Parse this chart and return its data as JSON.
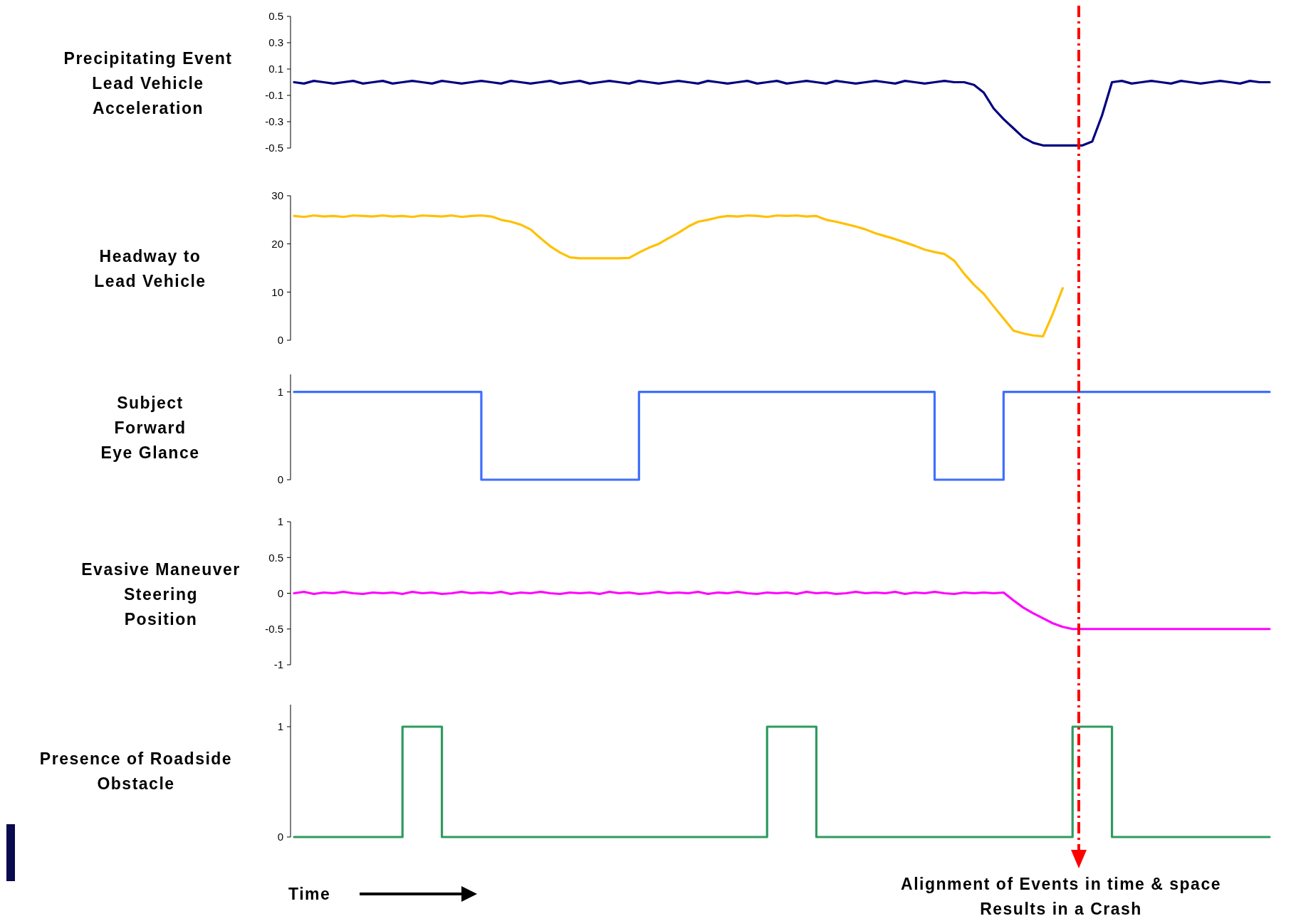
{
  "chart_data": [
    {
      "type": "line",
      "ylabel": "Precipitating Event\nLead Vehicle\nAcceleration",
      "ylim": [
        -0.5,
        0.5
      ],
      "yticks": [
        0.5,
        0.3,
        0.1,
        -0.1,
        -0.3,
        -0.5
      ],
      "categories": [
        null,
        null,
        null,
        null,
        null,
        null,
        null,
        null,
        null,
        null,
        null,
        null,
        null,
        null,
        null,
        null,
        null,
        null,
        null,
        null,
        null,
        null,
        null,
        null,
        null,
        null,
        null,
        null,
        null,
        null,
        null,
        null,
        null,
        null,
        null,
        null,
        null,
        null,
        null,
        null,
        null,
        null,
        null,
        null,
        null,
        null,
        null,
        null,
        null,
        null,
        null,
        null,
        null,
        null,
        null,
        null,
        null,
        null,
        null,
        null,
        null,
        null,
        null,
        null,
        null,
        null,
        null,
        null,
        null,
        null,
        null,
        null,
        null,
        null,
        null,
        null,
        null,
        null,
        null,
        null,
        null,
        null,
        null,
        null,
        null,
        null,
        null,
        null,
        null,
        null,
        null,
        null,
        null,
        null,
        null,
        null,
        null,
        null,
        null,
        null
      ],
      "series": [
        {
          "color": "#000080",
          "values": [
            0,
            -0.01,
            0.01,
            0,
            -0.01,
            0,
            0.01,
            -0.01,
            0,
            0.01,
            -0.01,
            0,
            0.01,
            0,
            -0.01,
            0.01,
            0,
            -0.01,
            0,
            0.01,
            0,
            -0.01,
            0.01,
            0,
            -0.01,
            0,
            0.01,
            -0.01,
            0,
            0.01,
            -0.01,
            0,
            0.01,
            0,
            -0.01,
            0.01,
            0,
            -0.01,
            0,
            0.01,
            0,
            -0.01,
            0.01,
            0,
            -0.01,
            0,
            0.01,
            -0.01,
            0,
            0.01,
            -0.01,
            0,
            0.01,
            0,
            -0.01,
            0.01,
            0,
            -0.01,
            0,
            0.01,
            0,
            -0.01,
            0.01,
            0,
            -0.01,
            0,
            0.01,
            0,
            0,
            -0.02,
            -0.08,
            -0.2,
            -0.28,
            -0.35,
            -0.42,
            -0.46,
            -0.48,
            -0.48,
            -0.48,
            -0.48,
            -0.48,
            -0.45,
            -0.25,
            0,
            0.01,
            -0.01,
            0,
            0.01,
            0,
            -0.01,
            0.01,
            0,
            -0.01,
            0,
            0.01,
            0,
            -0.01,
            0.01,
            0,
            0
          ]
        }
      ]
    },
    {
      "type": "line",
      "ylabel": "Headway to\nLead Vehicle",
      "ylim": [
        0,
        30
      ],
      "yticks": [
        0,
        10,
        20,
        30
      ],
      "categories": [
        null,
        null,
        null,
        null,
        null,
        null,
        null,
        null,
        null,
        null,
        null,
        null,
        null,
        null,
        null,
        null,
        null,
        null,
        null,
        null,
        null,
        null,
        null,
        null,
        null,
        null,
        null,
        null,
        null,
        null,
        null,
        null,
        null,
        null,
        null,
        null,
        null,
        null,
        null,
        null,
        null,
        null,
        null,
        null,
        null,
        null,
        null,
        null,
        null,
        null,
        null,
        null,
        null,
        null,
        null,
        null,
        null,
        null,
        null,
        null,
        null,
        null,
        null,
        null,
        null,
        null,
        null,
        null,
        null,
        null,
        null,
        null,
        null,
        null,
        null,
        null,
        null,
        null,
        null,
        null,
        null,
        null,
        null,
        null,
        null,
        null,
        null,
        null,
        null,
        null,
        null,
        null,
        null,
        null,
        null,
        null,
        null,
        null,
        null,
        null
      ],
      "series": [
        {
          "color": "#ffc000",
          "values": [
            25.8,
            25.6,
            25.9,
            25.7,
            25.8,
            25.6,
            25.9,
            25.8,
            25.7,
            25.9,
            25.7,
            25.8,
            25.6,
            25.9,
            25.8,
            25.7,
            25.9,
            25.6,
            25.8,
            25.9,
            25.7,
            25.0,
            24.6,
            24.0,
            23.0,
            21.2,
            19.5,
            18.2,
            17.2,
            17.0,
            17.0,
            17.0,
            17.0,
            17.0,
            17.1,
            18.2,
            19.2,
            20.0,
            21.2,
            22.3,
            23.6,
            24.6,
            25.0,
            25.5,
            25.8,
            25.7,
            25.9,
            25.8,
            25.6,
            25.9,
            25.8,
            25.9,
            25.7,
            25.8,
            25.0,
            24.6,
            24.1,
            23.6,
            23.0,
            22.2,
            21.6,
            21.0,
            20.3,
            19.6,
            18.8,
            18.3,
            17.9,
            16.5,
            13.8,
            11.5,
            9.6,
            7.0,
            4.5,
            2.0,
            1.4,
            1.0,
            0.8,
            5.5,
            10.8,
            null,
            null,
            null,
            null,
            null,
            null,
            null,
            null,
            null,
            null,
            null,
            null,
            null,
            null,
            null,
            null,
            null,
            null,
            null,
            null,
            null
          ]
        }
      ]
    },
    {
      "type": "step",
      "ylabel": "Subject\nForward\nEye Glance",
      "ylim": [
        0,
        1.2
      ],
      "yticks": [
        0,
        1
      ],
      "categories": [
        null,
        null,
        null,
        null,
        null,
        null,
        null,
        null,
        null,
        null,
        null,
        null,
        null,
        null,
        null,
        null,
        null,
        null,
        null,
        null,
        null,
        null,
        null,
        null,
        null,
        null,
        null,
        null,
        null,
        null,
        null,
        null,
        null,
        null,
        null,
        null,
        null,
        null,
        null,
        null,
        null,
        null,
        null,
        null,
        null,
        null,
        null,
        null,
        null,
        null,
        null,
        null,
        null,
        null,
        null,
        null,
        null,
        null,
        null,
        null,
        null,
        null,
        null,
        null,
        null,
        null,
        null,
        null,
        null,
        null,
        null,
        null,
        null,
        null,
        null,
        null,
        null,
        null,
        null,
        null,
        null,
        null,
        null,
        null,
        null,
        null,
        null,
        null,
        null,
        null,
        null,
        null,
        null,
        null,
        null,
        null,
        null,
        null,
        null,
        null
      ],
      "series": [
        {
          "color": "#3f6fff",
          "values": [
            1,
            1,
            1,
            1,
            1,
            1,
            1,
            1,
            1,
            1,
            1,
            1,
            1,
            1,
            1,
            1,
            1,
            1,
            1,
            0,
            0,
            0,
            0,
            0,
            0,
            0,
            0,
            0,
            0,
            0,
            0,
            0,
            0,
            0,
            0,
            1,
            1,
            1,
            1,
            1,
            1,
            1,
            1,
            1,
            1,
            1,
            1,
            1,
            1,
            1,
            1,
            1,
            1,
            1,
            1,
            1,
            1,
            1,
            1,
            1,
            1,
            1,
            1,
            1,
            1,
            0,
            0,
            0,
            0,
            0,
            0,
            0,
            1,
            1,
            1,
            1,
            1,
            1,
            1,
            1,
            1,
            1,
            1,
            1,
            1,
            1,
            1,
            1,
            1,
            1,
            1,
            1,
            1,
            1,
            1,
            1,
            1,
            1,
            1,
            1
          ]
        }
      ]
    },
    {
      "type": "line",
      "ylabel": "Evasive Maneuver\nSteering\nPosition",
      "ylim": [
        -1,
        1
      ],
      "yticks": [
        1,
        0.5,
        0,
        -0.5,
        -1
      ],
      "categories": [
        null,
        null,
        null,
        null,
        null,
        null,
        null,
        null,
        null,
        null,
        null,
        null,
        null,
        null,
        null,
        null,
        null,
        null,
        null,
        null,
        null,
        null,
        null,
        null,
        null,
        null,
        null,
        null,
        null,
        null,
        null,
        null,
        null,
        null,
        null,
        null,
        null,
        null,
        null,
        null,
        null,
        null,
        null,
        null,
        null,
        null,
        null,
        null,
        null,
        null,
        null,
        null,
        null,
        null,
        null,
        null,
        null,
        null,
        null,
        null,
        null,
        null,
        null,
        null,
        null,
        null,
        null,
        null,
        null,
        null,
        null,
        null,
        null,
        null,
        null,
        null,
        null,
        null,
        null,
        null,
        null,
        null,
        null,
        null,
        null,
        null,
        null,
        null,
        null,
        null,
        null,
        null,
        null,
        null,
        null,
        null,
        null,
        null,
        null,
        null
      ],
      "series": [
        {
          "color": "#ff00ff",
          "values": [
            0,
            0.02,
            -0.01,
            0.01,
            0,
            0.02,
            0,
            -0.01,
            0.01,
            0,
            0.01,
            -0.01,
            0.02,
            0,
            0.01,
            -0.01,
            0,
            0.02,
            0,
            0.01,
            0,
            0.02,
            -0.01,
            0.01,
            0,
            0.02,
            0,
            -0.01,
            0.01,
            0,
            0.01,
            -0.01,
            0.02,
            0,
            0.01,
            -0.01,
            0,
            0.02,
            0,
            0.01,
            0,
            0.02,
            -0.01,
            0.01,
            0,
            0.02,
            0,
            -0.01,
            0.01,
            0,
            0.01,
            -0.01,
            0.02,
            0,
            0.01,
            -0.01,
            0,
            0.02,
            0,
            0.01,
            0,
            0.02,
            -0.01,
            0.01,
            0,
            0.02,
            0,
            -0.01,
            0.01,
            0,
            0.01,
            0,
            0.01,
            -0.1,
            -0.2,
            -0.28,
            -0.35,
            -0.42,
            -0.47,
            -0.5,
            -0.5,
            -0.5,
            -0.5,
            -0.5,
            -0.5,
            -0.5,
            -0.5,
            -0.5,
            -0.5,
            -0.5,
            -0.5,
            -0.5,
            -0.5,
            -0.5,
            -0.5,
            -0.5,
            -0.5,
            -0.5,
            -0.5,
            -0.5
          ]
        }
      ]
    },
    {
      "type": "step",
      "ylabel": "Presence of Roadside\nObstacle",
      "xlabel": "Time",
      "ylim": [
        0,
        1.2
      ],
      "yticks": [
        0,
        1
      ],
      "annotations": [
        "Alignment of Events in time & space\nResults in a Crash"
      ],
      "categories": [
        null,
        null,
        null,
        null,
        null,
        null,
        null,
        null,
        null,
        null,
        null,
        null,
        null,
        null,
        null,
        null,
        null,
        null,
        null,
        null,
        null,
        null,
        null,
        null,
        null,
        null,
        null,
        null,
        null,
        null,
        null,
        null,
        null,
        null,
        null,
        null,
        null,
        null,
        null,
        null,
        null,
        null,
        null,
        null,
        null,
        null,
        null,
        null,
        null,
        null,
        null,
        null,
        null,
        null,
        null,
        null,
        null,
        null,
        null,
        null,
        null,
        null,
        null,
        null,
        null,
        null,
        null,
        null,
        null,
        null,
        null,
        null,
        null,
        null,
        null,
        null,
        null,
        null,
        null,
        null,
        null,
        null,
        null,
        null,
        null,
        null,
        null,
        null,
        null,
        null,
        null,
        null,
        null,
        null,
        null,
        null,
        null,
        null,
        null,
        null
      ],
      "series": [
        {
          "color": "#2e9b5e",
          "values": [
            0,
            0,
            0,
            0,
            0,
            0,
            0,
            0,
            0,
            0,
            0,
            1,
            1,
            1,
            1,
            0,
            0,
            0,
            0,
            0,
            0,
            0,
            0,
            0,
            0,
            0,
            0,
            0,
            0,
            0,
            0,
            0,
            0,
            0,
            0,
            0,
            0,
            0,
            0,
            0,
            0,
            0,
            0,
            0,
            0,
            0,
            0,
            0,
            1,
            1,
            1,
            1,
            1,
            0,
            0,
            0,
            0,
            0,
            0,
            0,
            0,
            0,
            0,
            0,
            0,
            0,
            0,
            0,
            0,
            0,
            0,
            0,
            0,
            0,
            0,
            0,
            0,
            0,
            0,
            1,
            1,
            1,
            1,
            0,
            0,
            0,
            0,
            0,
            0,
            0,
            0,
            0,
            0,
            0,
            0,
            0,
            0,
            0,
            0,
            0
          ]
        }
      ]
    }
  ]
}
